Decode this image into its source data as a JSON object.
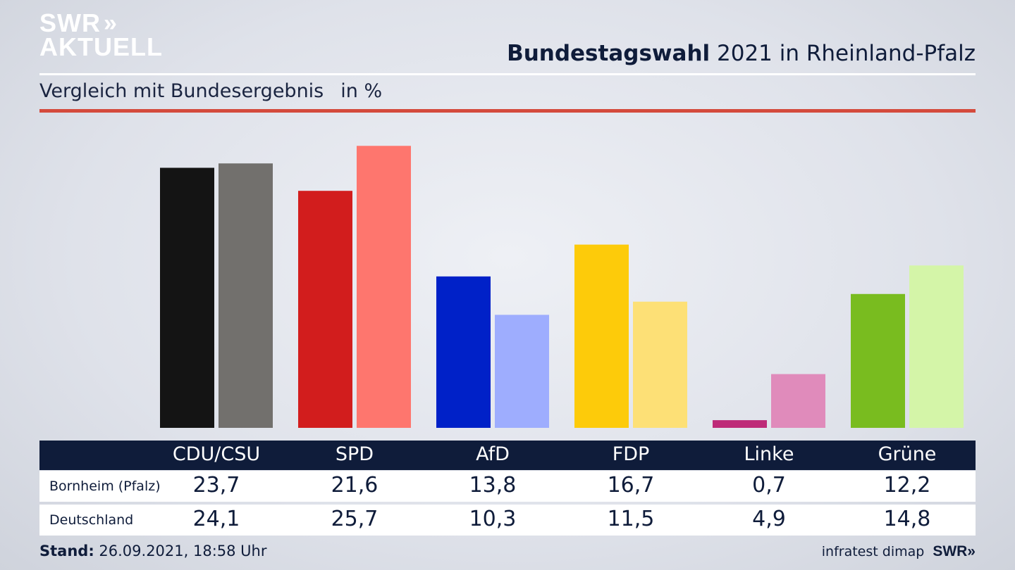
{
  "logo": {
    "line1": "SWR",
    "line2": "AKTUELL",
    "chevrons": "»"
  },
  "header": {
    "title_bold": "Bundestagswahl",
    "title_rest": " 2021 in Rheinland-Pfalz",
    "subtitle": "Vergleich mit Bundesergebnis",
    "unit": "in %"
  },
  "colors": {
    "rule_red": "#d44a3c",
    "table_header": "#0f1c3a"
  },
  "chart_data": {
    "type": "bar",
    "categories": [
      "CDU/CSU",
      "SPD",
      "AfD",
      "FDP",
      "Linke",
      "Grüne"
    ],
    "series": [
      {
        "name": "Bornheim (Pfalz)",
        "values": [
          23.7,
          21.6,
          13.8,
          16.7,
          0.7,
          12.2
        ],
        "colors": [
          "#141414",
          "#d21d1d",
          "#0021c8",
          "#fdcb0a",
          "#be2a78",
          "#79bc1f"
        ]
      },
      {
        "name": "Deutschland",
        "values": [
          24.1,
          25.7,
          10.3,
          11.5,
          4.9,
          14.8
        ],
        "colors": [
          "#72706d",
          "#fe766e",
          "#9eadfe",
          "#fde076",
          "#e08bbb",
          "#d4f5a8"
        ]
      }
    ],
    "labels_a": [
      "23,7",
      "21,6",
      "13,8",
      "16,7",
      "0,7",
      "12,2"
    ],
    "labels_b": [
      "24,1",
      "25,7",
      "10,3",
      "11,5",
      "4,9",
      "14,8"
    ],
    "ylim": [
      0,
      27
    ]
  },
  "table": {
    "row1_label": "Bornheim (Pfalz)",
    "row2_label": "Deutschland"
  },
  "footer": {
    "stand_label": "Stand:",
    "stand_value": " 26.09.2021, 18:58 Uhr",
    "source": "infratest dimap",
    "swr": "SWR»"
  }
}
